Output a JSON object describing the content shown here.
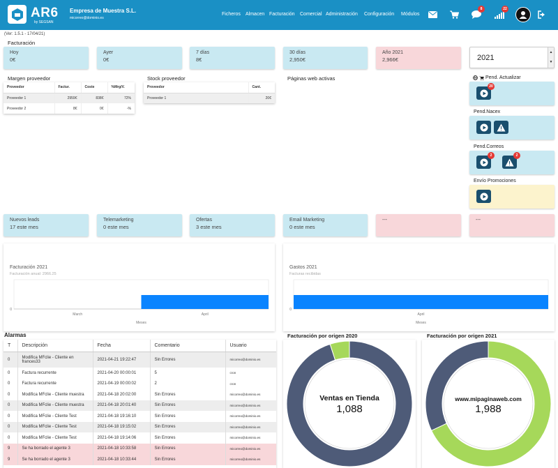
{
  "header": {
    "logo_text": "AR6",
    "logo_sub": "by SEGSAN",
    "company": "Empresa de Muestra S.L.",
    "email": "micorreo@dominio.es",
    "nav": [
      "Ficheros",
      "Almacen",
      "Facturación",
      "Comercial",
      "Administración",
      "Configuración",
      "Módulos"
    ],
    "icons": [
      "envelope-icon",
      "cart-icon",
      "chat-icon",
      "signal-icon",
      "user-icon",
      "logout-icon"
    ],
    "badges": {
      "chat": "8",
      "signal": "22"
    }
  },
  "version": "(Ver: 1.5.1 - 17/04/21)",
  "facturacion": {
    "title": "Facturación",
    "cards": [
      {
        "label": "Hoy",
        "value": "0€"
      },
      {
        "label": "Ayer",
        "value": "0€"
      },
      {
        "label": "7 días",
        "value": "8€"
      },
      {
        "label": "30 días",
        "value": "2,950€"
      },
      {
        "label": "Año 2021",
        "value": "2,966€"
      }
    ],
    "year": "2021"
  },
  "margen": {
    "title": "Margen proveedor",
    "headers": [
      "Proveedor",
      "Factur.",
      "Coste",
      "%Mrg/V."
    ],
    "rows": [
      [
        "Proveedor 1",
        "2959€",
        "838€",
        "72%"
      ],
      [
        "Proveedor 2",
        "8€",
        "0€",
        "-%"
      ]
    ]
  },
  "stock": {
    "title": "Stock proveedor",
    "headers": [
      "Proveedor",
      "Cant."
    ],
    "rows": [
      [
        "Proveedor 1",
        "20€"
      ]
    ]
  },
  "paginas": {
    "title": "Páginas web activas"
  },
  "pendientes": [
    {
      "label": "Pend. Actualizar",
      "badges": [
        "20"
      ]
    },
    {
      "label": "Pend.Nacex",
      "badges": []
    },
    {
      "label": "Pend.Correos",
      "badges": [
        "2",
        "2"
      ]
    },
    {
      "label": "Envío Promociones",
      "badges": []
    }
  ],
  "cards2": [
    {
      "label": "Nuevos leads",
      "value": "17 este mes"
    },
    {
      "label": "Telemarketing",
      "value": "0 este mes"
    },
    {
      "label": "Ofertas",
      "value": "3 este mes"
    },
    {
      "label": "Email Marketing",
      "value": "0 este mes"
    },
    {
      "label": "---",
      "value": ""
    },
    {
      "label": "---",
      "value": ""
    }
  ],
  "chart_data": [
    {
      "type": "bar",
      "title": "Facturación 2021",
      "subtitle": "Facturación anual: 2966.25",
      "xlabel": "Meses",
      "categories": [
        "March",
        "April"
      ],
      "values": [
        0,
        2966.25
      ],
      "ylim": [
        0,
        9200
      ],
      "yticks": [
        "0"
      ],
      "color": "#0a84ff"
    },
    {
      "type": "bar",
      "title": "Gastos 2021",
      "subtitle": "Facturas recibidas",
      "xlabel": "Meses",
      "categories": [
        "April"
      ],
      "values": [
        838
      ],
      "ylim": [
        0,
        1130
      ],
      "yticks": [
        "0"
      ],
      "color": "#0a84ff"
    },
    {
      "type": "pie",
      "title": "Facturación por origen 2020",
      "center_label": "Ventas en Tienda",
      "center_value": "1,088",
      "slices": [
        {
          "value": 0.95,
          "color": "#4e5b78"
        },
        {
          "value": 0.05,
          "color": "#a6d85a"
        }
      ]
    },
    {
      "type": "pie",
      "title": "Facturación por origen 2021",
      "center_label": "www.mipaginaweb.com",
      "center_value": "1,988",
      "slices": [
        {
          "value": 0.68,
          "color": "#a6d85a"
        },
        {
          "value": 0.32,
          "color": "#4e5b78"
        }
      ]
    }
  ],
  "alarms": {
    "title": "Alarmas",
    "headers": [
      "T",
      "Descripción",
      "Fecha",
      "Comentario",
      "Usuario"
    ],
    "rows": [
      {
        "t": "0",
        "desc": "Modifica MFclie - Cliente en frances33",
        "date": "2021-04-21 19:22:47",
        "comment": "Sin Errores",
        "user": "micorreo@dominio.es",
        "style": "g"
      },
      {
        "t": "0",
        "desc": "Factura recurrente",
        "date": "2021-04-20 00:00:01",
        "comment": "5",
        "user": "cron",
        "style": ""
      },
      {
        "t": "0",
        "desc": "Factura recurrente",
        "date": "2021-04-19 00:00:02",
        "comment": "2",
        "user": "cron",
        "style": ""
      },
      {
        "t": "0",
        "desc": "Modifica MFclie - Cliente muestra",
        "date": "2021-04-18 20:02:00",
        "comment": "Sin Errores",
        "user": "micorreo@dominio.es",
        "style": ""
      },
      {
        "t": "0",
        "desc": "Modifica MFclie - Cliente muestra",
        "date": "2021-04-18 20:01:40",
        "comment": "Sin Errores",
        "user": "micorreo@dominio.es",
        "style": "g"
      },
      {
        "t": "0",
        "desc": "Modifica MFclie - Cliente Test",
        "date": "2021-04-18 19:16:10",
        "comment": "Sin Errores",
        "user": "micorreo@dominio.es",
        "style": ""
      },
      {
        "t": "0",
        "desc": "Modifica MFclie - Cliente Test",
        "date": "2021-04-18 19:15:02",
        "comment": "Sin Errores",
        "user": "micorreo@dominio.es",
        "style": "g"
      },
      {
        "t": "0",
        "desc": "Modifica MFclie - Cliente Test",
        "date": "2021-04-18 19:14:06",
        "comment": "Sin Errores",
        "user": "micorreo@dominio.es",
        "style": ""
      },
      {
        "t": "9",
        "desc": "Se ha borrado el agente 3",
        "date": "2021-04-18 10:33:58",
        "comment": "Sin Errores",
        "user": "micorreo@dominio.es",
        "style": "r"
      },
      {
        "t": "9",
        "desc": "Se ha borrado el agente 3",
        "date": "2021-04-18 10:33:44",
        "comment": "Sin Errores",
        "user": "micorreo@dominio.es",
        "style": "r"
      }
    ]
  }
}
